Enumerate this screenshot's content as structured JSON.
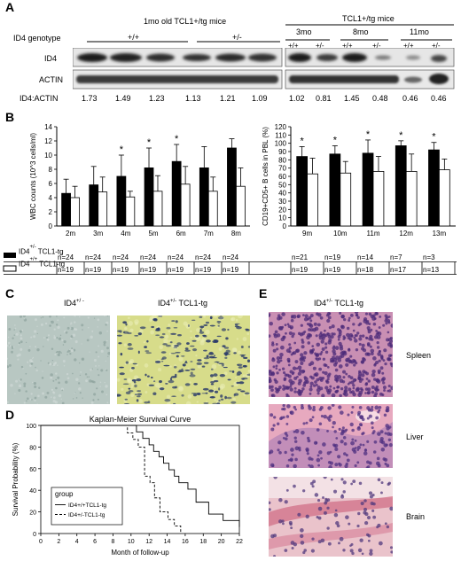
{
  "panelA": {
    "label": "A",
    "title_left": "1mo old TCL1+/tg mice",
    "title_right": "TCL1+/tg mice",
    "genotype_label": "ID4 genotype",
    "left_groups": [
      "+/+",
      "+/-"
    ],
    "age_groups": [
      "3mo",
      "8mo",
      "11mo"
    ],
    "right_genotypes": [
      "+/+",
      "+/-",
      "+/+",
      "+/-",
      "+/+",
      "+/-"
    ],
    "row_labels": [
      "ID4",
      "ACTIN"
    ],
    "ratio_label": "ID4:ACTIN",
    "ratios": [
      "1.73",
      "1.49",
      "1.23",
      "1.13",
      "1.21",
      "1.09",
      "1.02",
      "0.81",
      "1.45",
      "0.48",
      "0.46",
      "0.46"
    ]
  },
  "panelB": {
    "label": "B",
    "legend": [
      {
        "main": "ID4",
        "sup": "+/-",
        "suffix": "TCL1-tg"
      },
      {
        "main": "ID4",
        "sup": "+/+",
        "suffix": "TCL1-tg"
      }
    ],
    "n_tg_left": [
      "n=24",
      "n=24",
      "n=24",
      "n=24",
      "n=24",
      "n=24",
      "n=24"
    ],
    "n_wt_left": [
      "n=19",
      "n=19",
      "n=19",
      "n=19",
      "n=19",
      "n=19",
      "n=19"
    ],
    "n_tg_right": [
      "n=21",
      "n=19",
      "n=14",
      "n=7",
      "n=3"
    ],
    "n_wt_right": [
      "n=19",
      "n=19",
      "n=18",
      "n=17",
      "n=13"
    ]
  },
  "panelC": {
    "label": "C",
    "left_main": "ID4",
    "left_sup": "+/ -",
    "right_main": "ID4",
    "right_sup": "+/-",
    "right_suffix": "TCL1-tg"
  },
  "panelE": {
    "label": "E",
    "title_main": "ID4",
    "title_sup": "+/-",
    "title_suffix": "TCL1-tg",
    "tissues": [
      "Spleen",
      "Liver",
      "Brain"
    ]
  },
  "panelD": {
    "label": "D"
  },
  "chart_data": [
    {
      "type": "bar",
      "ylabel": "WBC counts (10^3 cells/ml)",
      "categories": [
        "2m",
        "3m",
        "4m",
        "5m",
        "6m",
        "7m",
        "8m"
      ],
      "ylim": [
        0,
        14
      ],
      "yticks": [
        0,
        2,
        4,
        6,
        8,
        10,
        12,
        14
      ],
      "series": [
        {
          "name": "ID4+/- TCL1-tg",
          "values": [
            4.6,
            5.8,
            7.0,
            8.2,
            9.1,
            8.2,
            11.0
          ],
          "errors": [
            2.0,
            2.6,
            3.0,
            2.8,
            2.4,
            3.0,
            1.3
          ]
        },
        {
          "name": "ID4+/+ TCL1-tg",
          "values": [
            4.0,
            4.8,
            4.1,
            4.9,
            5.9,
            4.9,
            5.6
          ],
          "errors": [
            1.6,
            2.1,
            0.8,
            2.2,
            2.5,
            2.0,
            2.6
          ]
        }
      ],
      "significance": [
        "",
        "",
        "*",
        "*",
        "*",
        "",
        ""
      ],
      "grid": false
    },
    {
      "type": "bar",
      "ylabel": "CD19+CD5+ B cells in PBL (%)",
      "categories": [
        "9m",
        "10m",
        "11m",
        "12m",
        "13m"
      ],
      "ylim": [
        0,
        120
      ],
      "yticks": [
        0,
        10,
        20,
        30,
        40,
        50,
        60,
        70,
        80,
        90,
        100,
        110,
        120
      ],
      "series": [
        {
          "name": "ID4+/- TCL1-tg",
          "values": [
            84,
            87,
            88,
            97,
            92
          ],
          "errors": [
            12,
            10,
            16,
            6,
            9
          ]
        },
        {
          "name": "ID4+/+ TCL1-tg",
          "values": [
            63,
            64,
            66,
            66,
            68
          ],
          "errors": [
            19,
            14,
            18,
            21,
            13
          ]
        }
      ],
      "significance": [
        "*",
        "*",
        "*",
        "*",
        "*"
      ],
      "grid": false
    },
    {
      "type": "line",
      "title": "Kaplan-Meier Survival Curve",
      "xlabel": "Month of follow-up",
      "ylabel": "Survival Probability (%)",
      "xlim": [
        0,
        22
      ],
      "ylim": [
        0,
        100
      ],
      "xticks": [
        0,
        2,
        4,
        6,
        8,
        10,
        12,
        14,
        16,
        18,
        20,
        22
      ],
      "yticks": [
        0,
        20,
        40,
        60,
        80,
        100
      ],
      "legend_title": "group",
      "legend_position": "bottom-left",
      "series": [
        {
          "name": "ID4+/+TCL1-tg",
          "style": "solid",
          "x": [
            0,
            10.2,
            10.6,
            11.3,
            12,
            12.5,
            13.1,
            13.6,
            14.2,
            14.8,
            15.3,
            16.3,
            17.2,
            18.6,
            20.2,
            22
          ],
          "y": [
            100,
            100,
            94,
            88,
            82,
            76,
            71,
            65,
            59,
            53,
            47,
            41,
            29,
            18,
            12,
            6
          ]
        },
        {
          "name": "ID4+/-TCL1-tg",
          "style": "dashed",
          "x": [
            0,
            9.0,
            9.6,
            10.2,
            10.8,
            11.5,
            12.1,
            12.6,
            13.2,
            14.1,
            14.8,
            15.5
          ],
          "y": [
            100,
            100,
            93,
            87,
            80,
            53,
            47,
            33,
            20,
            13,
            7,
            0
          ]
        }
      ]
    }
  ]
}
